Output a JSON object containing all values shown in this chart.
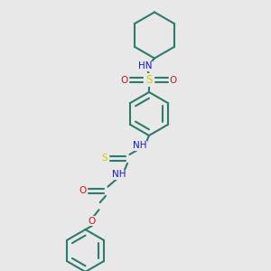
{
  "bg_color": "#e8e8e8",
  "bond_color": "#2d7a6e",
  "N_color": "#1818cc",
  "O_color": "#cc1818",
  "S_color": "#cccc00",
  "bond_lw": 1.5,
  "font_size": 7.5,
  "xlim": [
    0,
    10
  ],
  "ylim": [
    0,
    10
  ],
  "figsize": [
    3.0,
    3.0
  ],
  "dpi": 100
}
